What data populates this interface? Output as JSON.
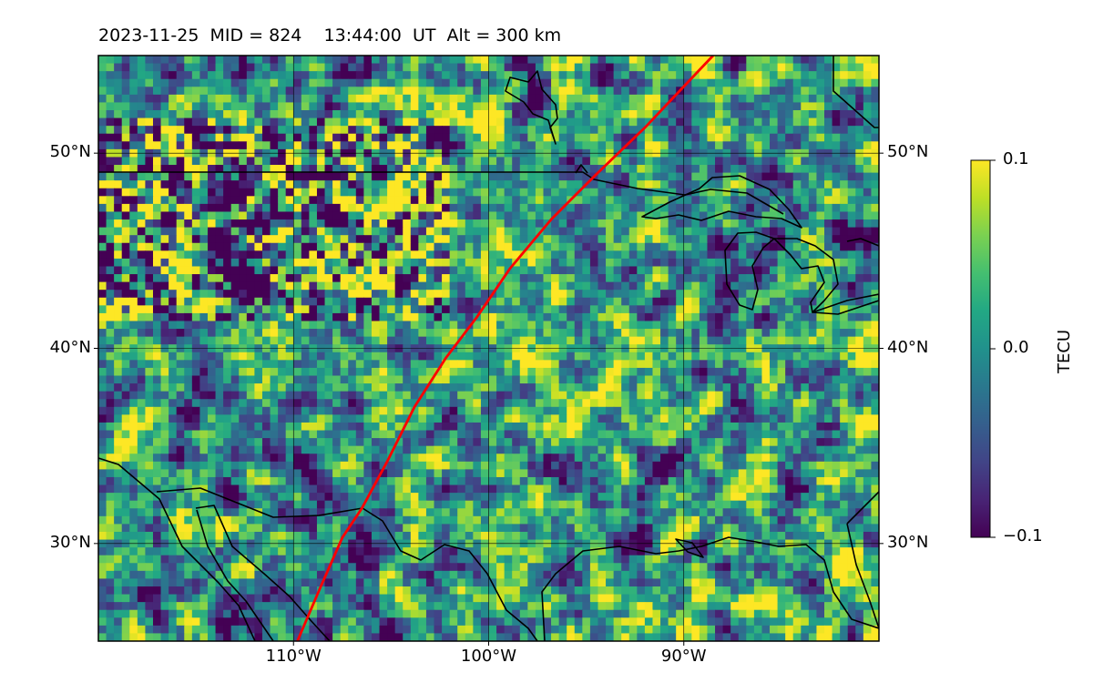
{
  "header": {
    "title": "2023-11-25  MID = 824    13:44:00  UT  Alt = 300 km"
  },
  "map": {
    "projection": "equirectangular",
    "lon_range": [
      -120,
      -80
    ],
    "lat_range": [
      25,
      55
    ],
    "parallels": [
      {
        "lat": 50,
        "label": "50°N"
      },
      {
        "lat": 40,
        "label": "40°N"
      },
      {
        "lat": 30,
        "label": "30°N"
      }
    ],
    "meridians": [
      {
        "lon": -110,
        "label": "110°W"
      },
      {
        "lon": -100,
        "label": "100°W"
      },
      {
        "lon": -90,
        "label": "90°W"
      }
    ],
    "overlay_color": "#ff0000"
  },
  "colorbar": {
    "label": "TECU",
    "colormap": "viridis",
    "min": -0.1,
    "max": 0.1,
    "ticks": [
      {
        "value": 0.1,
        "label": "0.1"
      },
      {
        "value": 0.0,
        "label": "0.0"
      },
      {
        "value": -0.1,
        "label": "−0.1"
      }
    ]
  },
  "chart_data": {
    "type": "heatmap",
    "title": "2023-11-25  MID = 824    13:44:00  UT  Alt = 300 km",
    "xlim": [
      -120,
      -80
    ],
    "ylim": [
      25,
      55
    ],
    "value_range": [
      -0.1,
      0.1
    ],
    "units": "TECU",
    "red_track": [
      [
        -109.8,
        25.0
      ],
      [
        -108.6,
        27.8
      ],
      [
        -107.5,
        30.3
      ],
      [
        -106.5,
        31.8
      ],
      [
        -105.2,
        34.2
      ],
      [
        -103.8,
        37.0
      ],
      [
        -102.2,
        39.5
      ],
      [
        -100.6,
        41.6
      ],
      [
        -98.9,
        44.1
      ],
      [
        -96.8,
        46.6
      ],
      [
        -94.5,
        48.9
      ],
      [
        -92.0,
        51.3
      ],
      [
        -88.5,
        55.0
      ]
    ]
  }
}
